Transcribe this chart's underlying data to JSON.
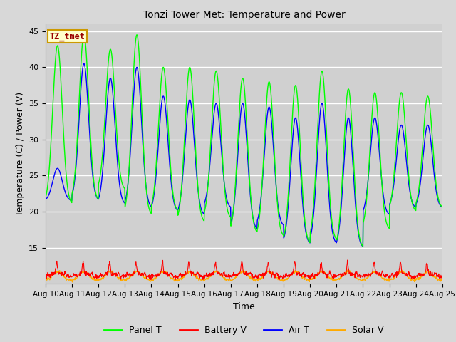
{
  "title": "Tonzi Tower Met: Temperature and Power",
  "xlabel": "Time",
  "ylabel": "Temperature (C) / Power (V)",
  "ylim": [
    10,
    46
  ],
  "yticks": [
    15,
    20,
    25,
    30,
    35,
    40,
    45
  ],
  "xlim_start": 0,
  "xlim_end": 15,
  "xtick_labels": [
    "Aug 10",
    "Aug 11",
    "Aug 12",
    "Aug 13",
    "Aug 14",
    "Aug 15",
    "Aug 16",
    "Aug 17",
    "Aug 18",
    "Aug 19",
    "Aug 20",
    "Aug 21",
    "Aug 22",
    "Aug 23",
    "Aug 24",
    "Aug 25"
  ],
  "annotation_text": "TZ_tmet",
  "annotation_bg": "#ffffcc",
  "annotation_border": "#cc9900",
  "annotation_text_color": "#990000",
  "colors": {
    "panel_t": "#00ff00",
    "battery_v": "#ff0000",
    "air_t": "#0000ff",
    "solar_v": "#ffaa00"
  },
  "legend_labels": [
    "Panel T",
    "Battery V",
    "Air T",
    "Solar V"
  ],
  "figure_bg": "#d8d8d8",
  "axes_bg": "#d0d0d0",
  "grid_color": "#ffffff"
}
